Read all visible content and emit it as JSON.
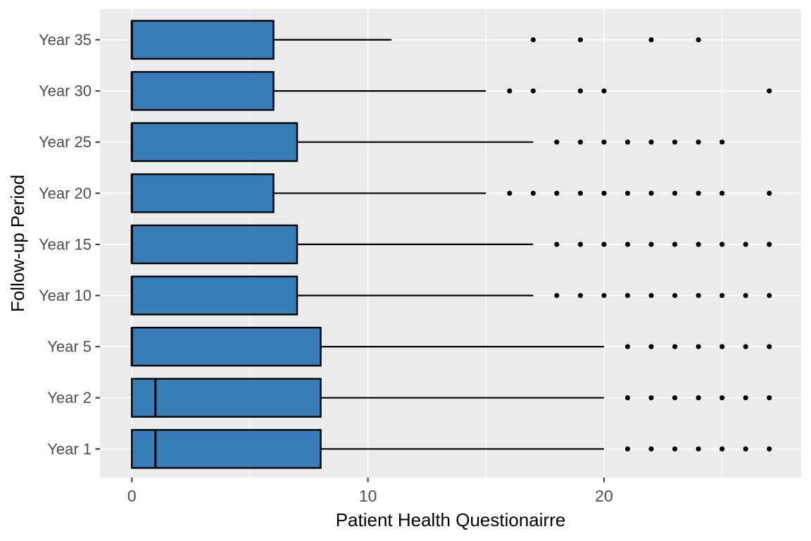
{
  "chart_data": {
    "type": "boxplot",
    "orientation": "horizontal",
    "title": "",
    "xlabel": "Patient Health Questionairre",
    "ylabel": "Follow-up Period",
    "x_ticks": [
      0,
      10,
      20
    ],
    "x_tick_labels": [
      "0",
      "10",
      "20"
    ],
    "x_minor_gridlines": [
      5,
      15,
      25
    ],
    "xlim": [
      -1.35,
      28.35
    ],
    "grid": "on",
    "legend": "none",
    "categories": [
      "Year 35",
      "Year 30",
      "Year 25",
      "Year 20",
      "Year 15",
      "Year 10",
      "Year 5",
      "Year 2",
      "Year 1"
    ],
    "boxes": [
      {
        "label": "Year 35",
        "min": 0,
        "q1": 0,
        "median": 0,
        "q3": 6,
        "whisker_max": 11,
        "outliers": [
          17,
          19,
          22,
          24
        ]
      },
      {
        "label": "Year 30",
        "min": 0,
        "q1": 0,
        "median": 0,
        "q3": 6,
        "whisker_max": 15,
        "outliers": [
          16,
          17,
          19,
          20,
          27
        ]
      },
      {
        "label": "Year 25",
        "min": 0,
        "q1": 0,
        "median": 0,
        "q3": 7,
        "whisker_max": 17,
        "outliers": [
          18,
          19,
          20,
          21,
          22,
          23,
          24,
          25
        ]
      },
      {
        "label": "Year 20",
        "min": 0,
        "q1": 0,
        "median": 0,
        "q3": 6,
        "whisker_max": 15,
        "outliers": [
          16,
          17,
          18,
          19,
          20,
          21,
          22,
          23,
          24,
          25,
          27
        ]
      },
      {
        "label": "Year 15",
        "min": 0,
        "q1": 0,
        "median": 0,
        "q3": 7,
        "whisker_max": 17,
        "outliers": [
          18,
          19,
          20,
          21,
          22,
          23,
          24,
          25,
          26,
          27
        ]
      },
      {
        "label": "Year 10",
        "min": 0,
        "q1": 0,
        "median": 0,
        "q3": 7,
        "whisker_max": 17,
        "outliers": [
          18,
          19,
          20,
          21,
          22,
          23,
          24,
          25,
          26,
          27
        ]
      },
      {
        "label": "Year 5",
        "min": 0,
        "q1": 0,
        "median": 0,
        "q3": 8,
        "whisker_max": 20,
        "outliers": [
          21,
          22,
          23,
          24,
          25,
          26,
          27
        ]
      },
      {
        "label": "Year 2",
        "min": 0,
        "q1": 0,
        "median": 1,
        "q3": 8,
        "whisker_max": 20,
        "outliers": [
          21,
          22,
          23,
          24,
          25,
          26,
          27
        ]
      },
      {
        "label": "Year 1",
        "min": 0,
        "q1": 0,
        "median": 1,
        "q3": 8,
        "whisker_max": 20,
        "outliers": [
          21,
          22,
          23,
          24,
          25,
          26,
          27
        ]
      }
    ],
    "colors": {
      "box_fill": "#377EB8",
      "box_border": "#000000",
      "median": "#000000",
      "whisker": "#000000",
      "outlier": "#000000",
      "panel_bg": "#EBEBEB",
      "gridline": "#FFFFFF",
      "tick_mark": "#333333",
      "tick_label": "#4D4D4D",
      "axis_title": "#000000",
      "plot_bg": "#FFFFFF"
    }
  }
}
